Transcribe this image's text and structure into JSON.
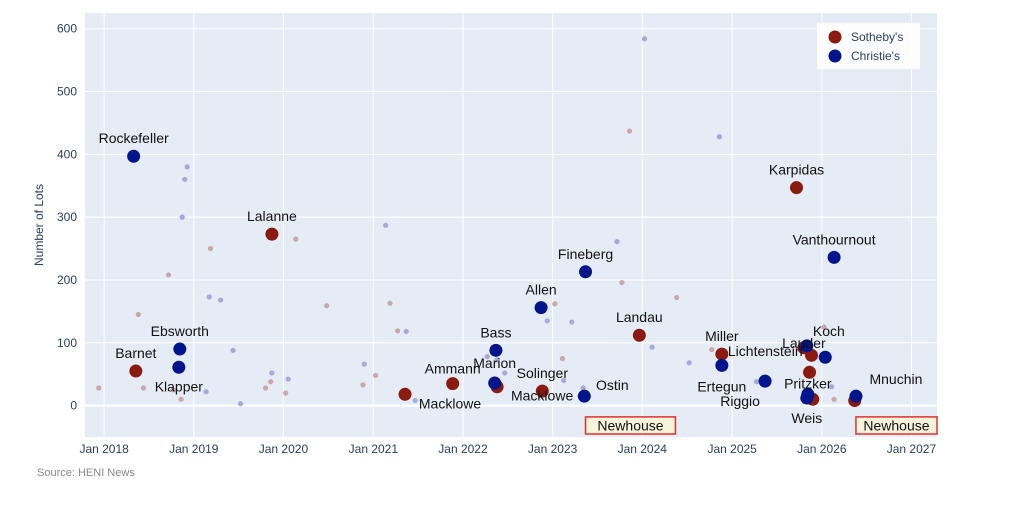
{
  "chart_data": {
    "type": "scatter",
    "ylabel": "Number of Lots",
    "ylim": [
      -50,
      625
    ],
    "xlim": [
      "2017-10-15",
      "2027-04-15"
    ],
    "yticks": [
      0,
      100,
      200,
      300,
      400,
      500,
      600
    ],
    "xticks": [
      {
        "date": "2018-01-01",
        "label": "Jan 2018"
      },
      {
        "date": "2019-01-01",
        "label": "Jan 2019"
      },
      {
        "date": "2020-01-01",
        "label": "Jan 2020"
      },
      {
        "date": "2021-01-01",
        "label": "Jan 2021"
      },
      {
        "date": "2022-01-01",
        "label": "Jan 2022"
      },
      {
        "date": "2023-01-01",
        "label": "Jan 2023"
      },
      {
        "date": "2024-01-01",
        "label": "Jan 2024"
      },
      {
        "date": "2025-01-01",
        "label": "Jan 2025"
      },
      {
        "date": "2026-01-01",
        "label": "Jan 2026"
      },
      {
        "date": "2027-01-01",
        "label": "Jan 2027"
      }
    ],
    "grid": true,
    "legend_position": "top-right",
    "colors": {
      "Sotheby's": "#8b1a10",
      "Christie's": "#00148c",
      "plot_bg": "#e5ecf6",
      "sotheby_faint": "#c9a7aa",
      "christie_faint": "#a6a9d9",
      "box_fill": "#f7f4dc",
      "box_border": "#e03030"
    },
    "series": [
      {
        "name": "Sotheby's",
        "points": [
          {
            "date": "2018-05-10",
            "y": 55,
            "label": "Barnet"
          },
          {
            "date": "2019-11-15",
            "y": 273,
            "label": "Lalanne"
          },
          {
            "date": "2021-05-10",
            "y": 18,
            "label": "Macklowe"
          },
          {
            "date": "2021-11-20",
            "y": 35,
            "label": "Ammann"
          },
          {
            "date": "2022-05-20",
            "y": 30,
            "label": "Macklowe"
          },
          {
            "date": "2022-11-20",
            "y": 23,
            "label": "Solinger"
          },
          {
            "date": "2023-12-20",
            "y": 112,
            "label": "Landau"
          },
          {
            "date": "2024-11-20",
            "y": 82,
            "label": "Miller"
          },
          {
            "date": "2025-09-20",
            "y": 347,
            "label": "Karpidas"
          },
          {
            "date": "2025-10-20",
            "y": 92,
            "label": "Lauder"
          },
          {
            "date": "2025-11-20",
            "y": 80,
            "label": ""
          },
          {
            "date": "2025-11-12",
            "y": 53,
            "label": ""
          },
          {
            "date": "2025-11-25",
            "y": 10,
            "label": ""
          },
          {
            "date": "2026-05-15",
            "y": 8,
            "label": ""
          }
        ]
      },
      {
        "name": "Christie's",
        "points": [
          {
            "date": "2018-05-01",
            "y": 397,
            "label": "Rockefeller"
          },
          {
            "date": "2018-11-05",
            "y": 90,
            "label": "Ebsworth"
          },
          {
            "date": "2018-11-01",
            "y": 61,
            "label": "Klapper"
          },
          {
            "date": "2022-05-15",
            "y": 88,
            "label": "Bass"
          },
          {
            "date": "2022-05-10",
            "y": 36,
            "label": "Marion"
          },
          {
            "date": "2022-11-15",
            "y": 156,
            "label": "Allen"
          },
          {
            "date": "2023-05-15",
            "y": 213,
            "label": "Fineberg"
          },
          {
            "date": "2023-05-10",
            "y": 15,
            "label": "Ostin"
          },
          {
            "date": "2024-11-20",
            "y": 64,
            "label": "Ertegun"
          },
          {
            "date": "2025-05-15",
            "y": 39,
            "label": "Riggio"
          },
          {
            "date": "2025-11-01",
            "y": 95,
            "label": "Koch"
          },
          {
            "date": "2026-01-15",
            "y": 77,
            "label": "Lichtenstein"
          },
          {
            "date": "2025-11-05",
            "y": 18,
            "label": "Pritzker"
          },
          {
            "date": "2025-11-01",
            "y": 12,
            "label": "Weis"
          },
          {
            "date": "2026-02-20",
            "y": 236,
            "label": "Vanthournout"
          },
          {
            "date": "2026-05-20",
            "y": 15,
            "label": "Mnuchin"
          }
        ]
      }
    ],
    "background_points": [
      {
        "date": "2017-12-10",
        "y": 28,
        "group": "Sotheby's"
      },
      {
        "date": "2018-05-20",
        "y": 145,
        "group": "Sotheby's"
      },
      {
        "date": "2018-06-10",
        "y": 28,
        "group": "Sotheby's"
      },
      {
        "date": "2018-09-20",
        "y": 208,
        "group": "Sotheby's"
      },
      {
        "date": "2018-10-10",
        "y": 25,
        "group": "Sotheby's"
      },
      {
        "date": "2018-11-10",
        "y": 10,
        "group": "Sotheby's"
      },
      {
        "date": "2019-03-10",
        "y": 250,
        "group": "Sotheby's"
      },
      {
        "date": "2019-10-20",
        "y": 28,
        "group": "Sotheby's"
      },
      {
        "date": "2019-11-10",
        "y": 38,
        "group": "Sotheby's"
      },
      {
        "date": "2020-01-10",
        "y": 20,
        "group": "Sotheby's"
      },
      {
        "date": "2020-02-20",
        "y": 265,
        "group": "Sotheby's"
      },
      {
        "date": "2020-06-25",
        "y": 159,
        "group": "Sotheby's"
      },
      {
        "date": "2020-11-20",
        "y": 33,
        "group": "Sotheby's"
      },
      {
        "date": "2021-03-10",
        "y": 163,
        "group": "Sotheby's"
      },
      {
        "date": "2021-04-10",
        "y": 119,
        "group": "Sotheby's"
      },
      {
        "date": "2021-01-10",
        "y": 48,
        "group": "Sotheby's"
      },
      {
        "date": "2023-01-10",
        "y": 162,
        "group": "Sotheby's"
      },
      {
        "date": "2023-02-10",
        "y": 75,
        "group": "Sotheby's"
      },
      {
        "date": "2023-10-10",
        "y": 196,
        "group": "Sotheby's"
      },
      {
        "date": "2023-11-10",
        "y": 437,
        "group": "Sotheby's"
      },
      {
        "date": "2024-05-20",
        "y": 172,
        "group": "Sotheby's"
      },
      {
        "date": "2024-10-10",
        "y": 89,
        "group": "Sotheby's"
      },
      {
        "date": "2026-01-10",
        "y": 125,
        "group": "Sotheby's"
      },
      {
        "date": "2026-02-20",
        "y": 10,
        "group": "Sotheby's"
      },
      {
        "date": "2018-11-15",
        "y": 300,
        "group": "Christie's"
      },
      {
        "date": "2018-11-25",
        "y": 360,
        "group": "Christie's"
      },
      {
        "date": "2018-12-05",
        "y": 380,
        "group": "Christie's"
      },
      {
        "date": "2019-02-20",
        "y": 22,
        "group": "Christie's"
      },
      {
        "date": "2019-03-05",
        "y": 173,
        "group": "Christie's"
      },
      {
        "date": "2019-04-20",
        "y": 168,
        "group": "Christie's"
      },
      {
        "date": "2019-06-10",
        "y": 88,
        "group": "Christie's"
      },
      {
        "date": "2019-07-10",
        "y": 3,
        "group": "Christie's"
      },
      {
        "date": "2019-11-15",
        "y": 52,
        "group": "Christie's"
      },
      {
        "date": "2020-01-20",
        "y": 42,
        "group": "Christie's"
      },
      {
        "date": "2020-11-25",
        "y": 66,
        "group": "Christie's"
      },
      {
        "date": "2021-02-20",
        "y": 287,
        "group": "Christie's"
      },
      {
        "date": "2021-05-15",
        "y": 118,
        "group": "Christie's"
      },
      {
        "date": "2021-06-20",
        "y": 8,
        "group": "Christie's"
      },
      {
        "date": "2022-04-10",
        "y": 78,
        "group": "Christie's"
      },
      {
        "date": "2022-05-20",
        "y": 73,
        "group": "Christie's"
      },
      {
        "date": "2022-06-20",
        "y": 52,
        "group": "Christie's"
      },
      {
        "date": "2022-12-10",
        "y": 135,
        "group": "Christie's"
      },
      {
        "date": "2023-02-15",
        "y": 40,
        "group": "Christie's"
      },
      {
        "date": "2023-03-20",
        "y": 133,
        "group": "Christie's"
      },
      {
        "date": "2023-05-05",
        "y": 28,
        "group": "Christie's"
      },
      {
        "date": "2023-09-20",
        "y": 261,
        "group": "Christie's"
      },
      {
        "date": "2024-01-10",
        "y": 584,
        "group": "Christie's"
      },
      {
        "date": "2024-02-10",
        "y": 93,
        "group": "Christie's"
      },
      {
        "date": "2024-07-10",
        "y": 68,
        "group": "Christie's"
      },
      {
        "date": "2024-11-10",
        "y": 428,
        "group": "Christie's"
      },
      {
        "date": "2025-04-10",
        "y": 38,
        "group": "Christie's"
      },
      {
        "date": "2026-02-10",
        "y": 30,
        "group": "Christie's"
      }
    ],
    "highlight_boxes": [
      {
        "label": "Newhouse",
        "from_date": "2023-05-15",
        "to_date": "2024-05-15"
      },
      {
        "label": "Newhouse",
        "from_date": "2026-05-20",
        "to_date": "2027-04-15"
      }
    ]
  },
  "source": "Source: HENI News"
}
